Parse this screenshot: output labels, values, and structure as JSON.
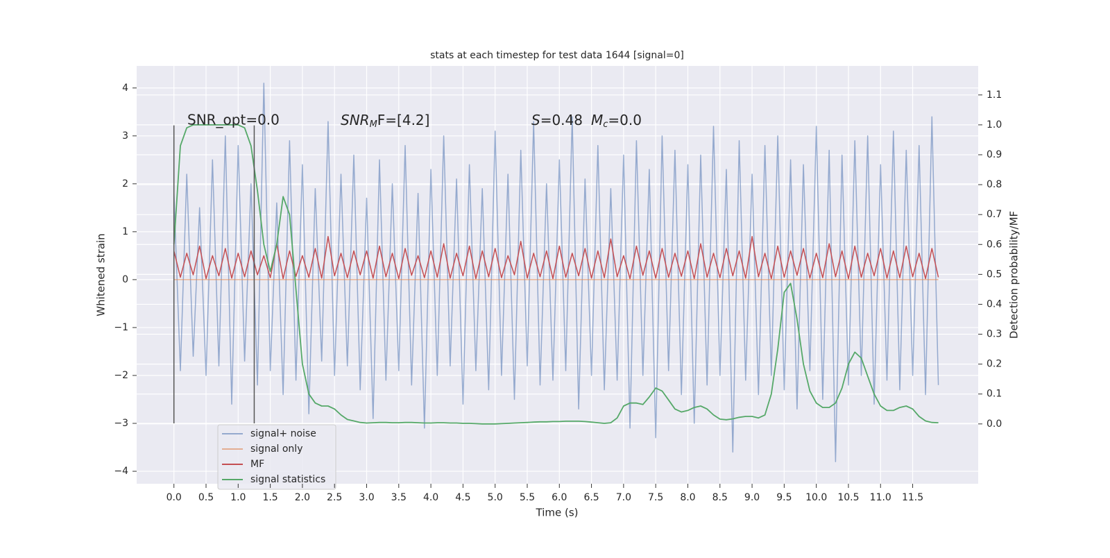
{
  "chart_data": {
    "type": "line",
    "title": "stats at each timestep for test data 1644 [signal=0]",
    "xlabel": "Time (s)",
    "ylabel": "Whitened strain",
    "y2label": "Detection probability/MF",
    "annotations": [
      {
        "text": "SNR_opt=0.0"
      },
      {
        "main": "SNR",
        "sub": "M",
        "rest": "F=[4.2]"
      },
      {
        "main": "S",
        "rest": "=0.48",
        "main2": "M",
        "sub": "c",
        "rest2": "=0.0"
      }
    ],
    "vlines": {
      "x": [
        0,
        1.25
      ],
      "ymin": -3,
      "ymax": 3.22,
      "color": "#555555"
    },
    "grid": true,
    "xlim": [
      -0.58,
      12.52
    ],
    "ylim": [
      -4.26,
      4.46
    ],
    "y2lim": [
      -0.2,
      1.197
    ],
    "xticks": [
      {
        "value": 0,
        "label": "0.0"
      },
      {
        "value": 0.5,
        "label": "0.5"
      },
      {
        "value": 1,
        "label": "1.0"
      },
      {
        "value": 1.5,
        "label": "1.5"
      },
      {
        "value": 2,
        "label": "2.0"
      },
      {
        "value": 2.5,
        "label": "2.5"
      },
      {
        "value": 3,
        "label": "3.0"
      },
      {
        "value": 3.5,
        "label": "3.5"
      },
      {
        "value": 4,
        "label": "4.0"
      },
      {
        "value": 4.5,
        "label": "4.5"
      },
      {
        "value": 5,
        "label": "5.0"
      },
      {
        "value": 5.5,
        "label": "5.5"
      },
      {
        "value": 6,
        "label": "6.0"
      },
      {
        "value": 6.5,
        "label": "6.5"
      },
      {
        "value": 7,
        "label": "7.0"
      },
      {
        "value": 7.5,
        "label": "7.5"
      },
      {
        "value": 8,
        "label": "8.0"
      },
      {
        "value": 8.5,
        "label": "8.5"
      },
      {
        "value": 9,
        "label": "9.0"
      },
      {
        "value": 9.5,
        "label": "9.5"
      },
      {
        "value": 10,
        "label": "10.0"
      },
      {
        "value": 10.5,
        "label": "10.5"
      },
      {
        "value": 11,
        "label": "11.0"
      },
      {
        "value": 11.5,
        "label": "11.5"
      }
    ],
    "yticks": [
      {
        "value": -4,
        "label": "−4"
      },
      {
        "value": -3,
        "label": "−3"
      },
      {
        "value": -2,
        "label": "−2"
      },
      {
        "value": -1,
        "label": "−1"
      },
      0,
      1,
      2,
      3,
      4
    ],
    "y2ticks": [
      {
        "value": 0,
        "label": "0.0"
      },
      {
        "value": 0.1,
        "label": "0.1"
      },
      {
        "value": 0.2,
        "label": "0.2"
      },
      {
        "value": 0.3,
        "label": "0.3"
      },
      {
        "value": 0.4,
        "label": "0.4"
      },
      {
        "value": 0.5,
        "label": "0.5"
      },
      {
        "value": 0.6,
        "label": "0.6"
      },
      {
        "value": 0.7,
        "label": "0.7"
      },
      {
        "value": 0.8,
        "label": "0.8"
      },
      {
        "value": 0.9,
        "label": "0.9"
      },
      {
        "value": 1,
        "label": "1.0"
      },
      {
        "value": 1.1,
        "label": "1.1"
      }
    ],
    "x": [
      0,
      0.1,
      0.2,
      0.3,
      0.4,
      0.5,
      0.6,
      0.7,
      0.8,
      0.9,
      1,
      1.1,
      1.2,
      1.3,
      1.4,
      1.5,
      1.6,
      1.7,
      1.8,
      1.9,
      2,
      2.1,
      2.2,
      2.3,
      2.4,
      2.5,
      2.6,
      2.7,
      2.8,
      2.9,
      3,
      3.1,
      3.2,
      3.3,
      3.4,
      3.5,
      3.6,
      3.7,
      3.8,
      3.9,
      4,
      4.1,
      4.2,
      4.3,
      4.4,
      4.5,
      4.6,
      4.7,
      4.8,
      4.9,
      5,
      5.1,
      5.2,
      5.3,
      5.4,
      5.5,
      5.6,
      5.7,
      5.8,
      5.9,
      6,
      6.1,
      6.2,
      6.3,
      6.4,
      6.5,
      6.6,
      6.7,
      6.8,
      6.9,
      7,
      7.1,
      7.2,
      7.3,
      7.4,
      7.5,
      7.6,
      7.7,
      7.8,
      7.9,
      8,
      8.1,
      8.2,
      8.3,
      8.4,
      8.5,
      8.6,
      8.7,
      8.8,
      8.9,
      9,
      9.1,
      9.2,
      9.3,
      9.4,
      9.5,
      9.6,
      9.7,
      9.8,
      9.9,
      10,
      10.1,
      10.2,
      10.3,
      10.4,
      10.5,
      10.6,
      10.7,
      10.8,
      10.9,
      11,
      11.1,
      11.2,
      11.3,
      11.4,
      11.5,
      11.6,
      11.7,
      11.8,
      11.9
    ],
    "series": [
      {
        "name": "signal+ noise",
        "color": "#4c72b0",
        "alpha": 0.55,
        "values": [
          1.8,
          -1.9,
          2.2,
          -1.6,
          1.5,
          -2.0,
          2.5,
          -1.8,
          3.0,
          -2.6,
          2.8,
          -1.7,
          2.0,
          -2.2,
          4.1,
          -1.9,
          1.6,
          -2.4,
          2.9,
          -2.1,
          2.4,
          -2.8,
          1.9,
          -1.7,
          3.3,
          -2.0,
          2.2,
          -1.8,
          2.6,
          -2.3,
          1.7,
          -2.9,
          2.5,
          -2.1,
          2.0,
          -1.9,
          2.8,
          -2.2,
          1.8,
          -3.1,
          2.3,
          -2.0,
          3.0,
          -1.8,
          2.1,
          -2.6,
          2.4,
          -1.9,
          1.9,
          -2.3,
          3.1,
          -2.0,
          2.2,
          -2.5,
          2.7,
          -1.8,
          3.3,
          -2.2,
          2.0,
          -2.1,
          2.5,
          -1.9,
          3.4,
          -2.7,
          2.1,
          -2.0,
          2.8,
          -2.3,
          1.9,
          -2.1,
          2.6,
          -3.1,
          2.9,
          -2.0,
          2.3,
          -3.3,
          3.0,
          -1.9,
          2.7,
          -2.4,
          2.4,
          -3.0,
          2.6,
          -2.2,
          3.2,
          -2.0,
          2.3,
          -3.6,
          2.9,
          -2.1,
          2.2,
          -2.4,
          2.8,
          -2.0,
          3.0,
          -2.3,
          2.5,
          -2.7,
          2.4,
          -1.9,
          3.2,
          -2.5,
          2.7,
          -3.8,
          2.6,
          -2.2,
          2.9,
          -2.0,
          3.0,
          -2.6,
          2.4,
          -2.1,
          3.1,
          -2.3,
          2.7,
          -2.0,
          2.8,
          -2.4,
          3.4,
          -2.2
        ]
      },
      {
        "name": "signal only",
        "color": "#dd8452",
        "alpha": 0.6,
        "x": [
          0,
          11.9
        ],
        "values": [
          0,
          0
        ]
      },
      {
        "name": "MF",
        "color": "#c44e52",
        "alpha": 1,
        "values": [
          0.6,
          0.05,
          0.55,
          0.1,
          0.7,
          0.02,
          0.5,
          0.08,
          0.65,
          0.03,
          0.55,
          0.06,
          0.6,
          0.1,
          0.5,
          0.04,
          0.75,
          0.02,
          0.6,
          0.07,
          0.5,
          0.05,
          0.65,
          0.03,
          0.9,
          0.08,
          0.55,
          0.04,
          0.6,
          0.1,
          0.6,
          0.03,
          0.7,
          0.06,
          0.55,
          0.02,
          0.65,
          0.09,
          0.5,
          0.04,
          0.6,
          0.05,
          0.75,
          0.03,
          0.55,
          0.08,
          0.7,
          0.02,
          0.6,
          0.06,
          0.65,
          0.04,
          0.5,
          0.1,
          0.8,
          0.03,
          0.55,
          0.06,
          0.6,
          0.02,
          0.7,
          0.05,
          0.55,
          0.08,
          0.65,
          0.03,
          0.6,
          0.04,
          0.85,
          0.06,
          0.5,
          0.02,
          0.7,
          0.09,
          0.6,
          0.03,
          0.65,
          0.05,
          0.55,
          0.07,
          0.6,
          0.02,
          0.75,
          0.05,
          0.55,
          0.04,
          0.65,
          0.08,
          0.6,
          0.03,
          0.9,
          0.06,
          0.55,
          0.02,
          0.7,
          0.05,
          0.6,
          0.09,
          0.65,
          0.03,
          0.55,
          0.04,
          0.75,
          0.06,
          0.6,
          0.02,
          0.7,
          0.05,
          0.55,
          0.08,
          0.65,
          0.03,
          0.6,
          0.04,
          0.7,
          0.06,
          0.55,
          0.02,
          0.65,
          0.05
        ]
      },
      {
        "name": "signal statistics",
        "color": "#55a868",
        "alpha": 1,
        "axis": "y2",
        "values": [
          0.6,
          0.93,
          0.99,
          1.0,
          1.0,
          1.0,
          1.0,
          1.0,
          1.0,
          1.0,
          1.0,
          0.99,
          0.93,
          0.78,
          0.6,
          0.51,
          0.6,
          0.76,
          0.7,
          0.45,
          0.2,
          0.1,
          0.07,
          0.06,
          0.06,
          0.05,
          0.03,
          0.015,
          0.01,
          0.005,
          0.003,
          0.004,
          0.005,
          0.005,
          0.004,
          0.004,
          0.005,
          0.005,
          0.004,
          0.003,
          0.003,
          0.004,
          0.004,
          0.003,
          0.003,
          0.002,
          0.002,
          0.001,
          0.0,
          0.0,
          0.0,
          0.001,
          0.002,
          0.003,
          0.004,
          0.005,
          0.006,
          0.007,
          0.007,
          0.008,
          0.008,
          0.009,
          0.009,
          0.009,
          0.008,
          0.006,
          0.004,
          0.002,
          0.004,
          0.02,
          0.06,
          0.07,
          0.07,
          0.065,
          0.09,
          0.12,
          0.11,
          0.08,
          0.05,
          0.04,
          0.045,
          0.055,
          0.06,
          0.05,
          0.03,
          0.016,
          0.014,
          0.017,
          0.022,
          0.025,
          0.025,
          0.02,
          0.03,
          0.1,
          0.25,
          0.44,
          0.47,
          0.35,
          0.2,
          0.11,
          0.07,
          0.055,
          0.055,
          0.07,
          0.12,
          0.2,
          0.24,
          0.22,
          0.16,
          0.1,
          0.06,
          0.045,
          0.045,
          0.055,
          0.06,
          0.05,
          0.025,
          0.01,
          0.005,
          0.004
        ]
      }
    ]
  }
}
